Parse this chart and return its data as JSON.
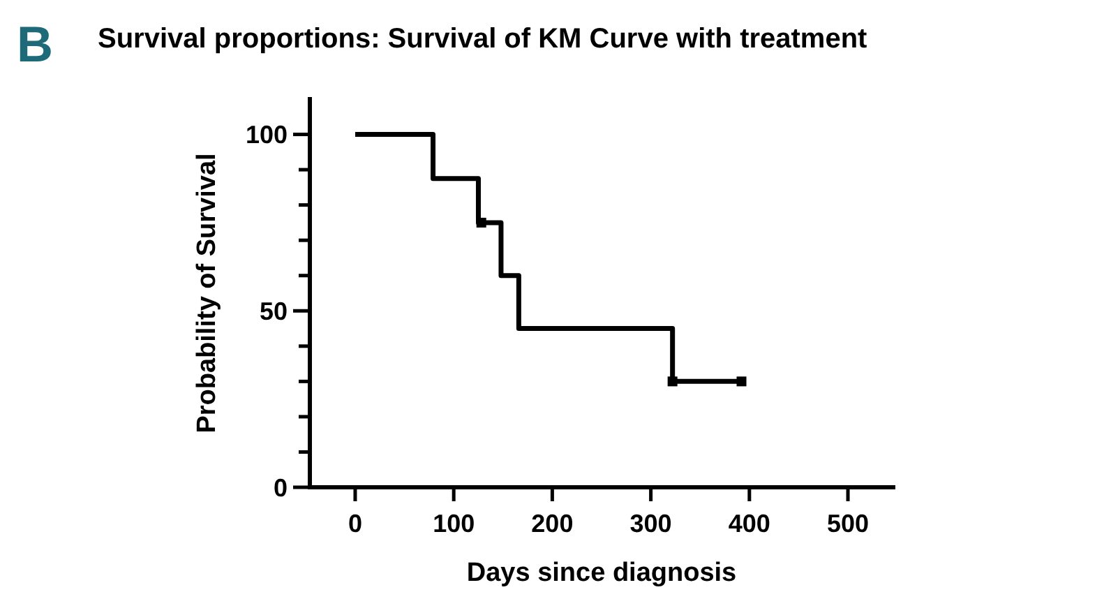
{
  "chart_data": {
    "type": "step",
    "title": "Survival proportions: Survival of KM Curve with treatment",
    "xlabel": "Days since diagnosis",
    "ylabel": "Probability of Survival",
    "annotations": [
      "B"
    ],
    "xlim": [
      -46,
      546
    ],
    "xticks": [
      0,
      100,
      200,
      300,
      400,
      500
    ],
    "ylim": [
      0,
      110
    ],
    "yticks": [
      0,
      {
        "value": 10,
        "label": null
      },
      {
        "value": 20,
        "label": null
      },
      {
        "value": 30,
        "label": null
      },
      {
        "value": 40,
        "label": null
      },
      50,
      {
        "value": 60,
        "label": null
      },
      {
        "value": 70,
        "label": null
      },
      {
        "value": 80,
        "label": null
      },
      {
        "value": 90,
        "label": null
      },
      100
    ],
    "grid": false,
    "series": [
      {
        "color": "#000000",
        "x": [
          0,
          79,
          125,
          148,
          166,
          322,
          392
        ],
        "values": [
          100,
          87.5,
          75,
          60,
          45,
          30,
          30
        ]
      },
      {
        "type": "scatter",
        "marker": "square",
        "color": "#000000",
        "x": [
          128,
          322,
          392
        ],
        "values": [
          75,
          30,
          30
        ]
      }
    ]
  }
}
